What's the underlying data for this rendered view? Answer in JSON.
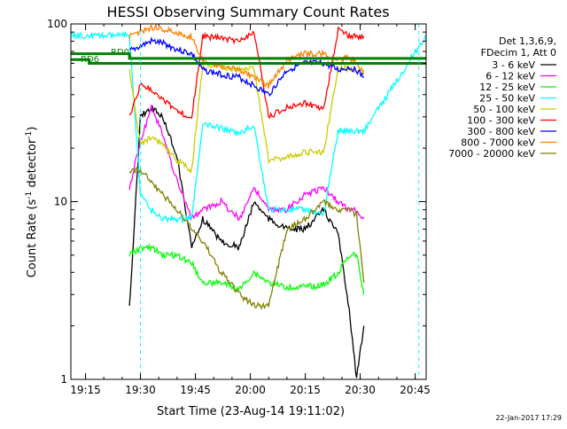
{
  "chart_data": {
    "type": "line",
    "title": "HESSI Observing Summary Count Rates",
    "xlabel": "Start Time (23-Aug-14 19:11:02)",
    "ylabel": "Count Rate (s",
    "ylabel_sup": "-1",
    "ylabel_tail": " detector",
    "ylabel_end": ")",
    "y_scale": "log",
    "ylim": [
      1,
      100
    ],
    "xlim": [
      "19:11",
      "20:48"
    ],
    "x_ticks": [
      "19:15",
      "19:30",
      "19:45",
      "20:00",
      "20:15",
      "20:30",
      "20:45"
    ],
    "y_ticks": [
      "1",
      "10",
      "100"
    ],
    "legend_header": [
      "Det 1,3,6,9,",
      "FDecim 1, Att 0"
    ],
    "annotations": [
      "RD0",
      "RD6"
    ],
    "footer_date": "22-Jan-2017 17:29",
    "series": [
      {
        "name": "3 - 6 keV",
        "color": "#000000",
        "x": [
          "19:27",
          "19:30",
          "19:33",
          "19:36",
          "19:40",
          "19:44",
          "19:47",
          "19:52",
          "19:57",
          "20:01",
          "20:05",
          "20:10",
          "20:15",
          "20:20",
          "20:24",
          "20:27",
          "20:29",
          "20:31"
        ],
        "y": [
          2.5,
          30,
          34,
          30,
          18,
          5.5,
          8,
          6,
          5.5,
          10,
          8,
          7,
          7,
          9,
          6.5,
          2.5,
          1.0,
          2
        ]
      },
      {
        "name": "6 - 12 keV",
        "color": "#ff00ff",
        "x": [
          "19:27",
          "19:30",
          "19:33",
          "19:36",
          "19:40",
          "19:44",
          "19:47",
          "19:52",
          "19:57",
          "20:01",
          "20:05",
          "20:10",
          "20:15",
          "20:20",
          "20:24",
          "20:27",
          "20:29",
          "20:31"
        ],
        "y": [
          12,
          22,
          34,
          24,
          13,
          8,
          9,
          10,
          8,
          12,
          9,
          9,
          11,
          12,
          10,
          9,
          9,
          8
        ]
      },
      {
        "name": "12 - 25 keV",
        "color": "#00ff00",
        "x": [
          "19:27",
          "19:30",
          "19:33",
          "19:36",
          "19:40",
          "19:44",
          "19:47",
          "19:52",
          "19:57",
          "20:01",
          "20:05",
          "20:10",
          "20:15",
          "20:20",
          "20:24",
          "20:27",
          "20:29",
          "20:31"
        ],
        "y": [
          5,
          5.5,
          5.5,
          5,
          5,
          4.5,
          3.5,
          3.5,
          3.2,
          4,
          3.5,
          3.3,
          3.3,
          3.4,
          4,
          5,
          5,
          3
        ]
      },
      {
        "name": "25 - 50 keV",
        "color": "#00ffff",
        "x": [
          "19:10",
          "19:27",
          "19:30",
          "19:33",
          "19:36",
          "19:40",
          "19:44",
          "19:47",
          "19:52",
          "19:57",
          "20:01",
          "20:05",
          "20:10",
          "20:15",
          "20:20",
          "20:24",
          "20:27",
          "20:31",
          "20:48"
        ],
        "y": [
          86,
          86,
          11,
          9,
          8,
          8,
          8,
          27,
          26,
          24,
          27,
          9,
          9,
          9,
          8.5,
          25,
          25,
          25,
          86
        ]
      },
      {
        "name": "50 - 100 keV",
        "color": "#cccc00",
        "x": [
          "19:27",
          "19:30",
          "19:33",
          "19:36",
          "19:40",
          "19:44",
          "19:47",
          "19:52",
          "19:57",
          "20:01",
          "20:05",
          "20:10",
          "20:15",
          "20:20",
          "20:24",
          "20:27",
          "20:29",
          "20:31"
        ],
        "y": [
          55,
          21,
          23,
          21,
          17,
          15,
          60,
          57,
          55,
          57,
          17,
          18,
          19,
          19,
          57,
          56,
          55,
          55
        ]
      },
      {
        "name": "100 - 300 keV",
        "color": "#ff0000",
        "x": [
          "19:27",
          "19:30",
          "19:33",
          "19:36",
          "19:40",
          "19:44",
          "19:47",
          "19:52",
          "19:57",
          "20:01",
          "20:05",
          "20:10",
          "20:15",
          "20:20",
          "20:24",
          "20:27",
          "20:29",
          "20:31"
        ],
        "y": [
          30,
          45,
          43,
          38,
          32,
          30,
          85,
          83,
          80,
          90,
          30,
          34,
          36,
          33,
          93,
          85,
          85,
          85
        ]
      },
      {
        "name": "300 - 800 keV",
        "color": "#0000ff",
        "x": [
          "19:27",
          "19:30",
          "19:33",
          "19:36",
          "19:40",
          "19:44",
          "19:47",
          "19:52",
          "19:57",
          "20:01",
          "20:05",
          "20:10",
          "20:15",
          "20:20",
          "20:24",
          "20:27",
          "20:29",
          "20:31"
        ],
        "y": [
          70,
          75,
          80,
          78,
          72,
          68,
          55,
          52,
          50,
          45,
          40,
          55,
          60,
          60,
          55,
          57,
          55,
          50
        ]
      },
      {
        "name": "800 - 7000 keV",
        "color": "#ff8000",
        "x": [
          "19:27",
          "19:30",
          "19:33",
          "19:36",
          "19:40",
          "19:44",
          "19:47",
          "19:52",
          "19:57",
          "20:01",
          "20:05",
          "20:10",
          "20:15",
          "20:20",
          "20:24",
          "20:27",
          "20:29",
          "20:31"
        ],
        "y": [
          85,
          90,
          96,
          94,
          88,
          85,
          62,
          58,
          55,
          50,
          45,
          62,
          68,
          68,
          62,
          65,
          60,
          52
        ]
      },
      {
        "name": "7000 - 20000 keV",
        "color": "#808000",
        "x": [
          "19:27",
          "19:30",
          "19:33",
          "19:36",
          "19:40",
          "19:44",
          "19:47",
          "19:52",
          "19:57",
          "20:01",
          "20:05",
          "20:10",
          "20:15",
          "20:20",
          "20:24",
          "20:27",
          "20:29",
          "20:31"
        ],
        "y": [
          15,
          15,
          13,
          11,
          9,
          7,
          6,
          4,
          3,
          2.6,
          2.6,
          7,
          8,
          10,
          9,
          9,
          8.5,
          3.5
        ]
      },
      {
        "name": "RD0",
        "color": "#008000",
        "x": [
          "19:10",
          "19:27",
          "19:27",
          "20:48"
        ],
        "y": [
          68,
          68,
          64,
          64
        ]
      },
      {
        "name": "RD6",
        "color": "#008000",
        "x": [
          "19:10",
          "19:16",
          "19:16",
          "20:48"
        ],
        "y": [
          63,
          63,
          60,
          60
        ]
      }
    ],
    "vertical_markers": {
      "color": "#00ffff",
      "x": [
        "19:30",
        "20:46"
      ]
    },
    "grid": false
  }
}
